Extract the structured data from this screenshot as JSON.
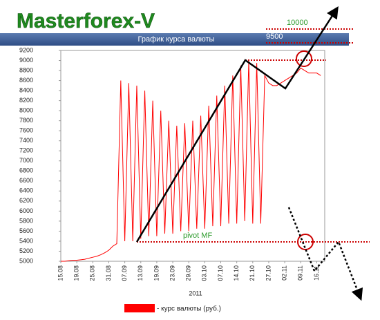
{
  "chart_data": {
    "type": "line",
    "title": "Masterforex-V",
    "subtitle": "График курса валюты",
    "x_label": "2011",
    "x": [
      0,
      1,
      2,
      3,
      4,
      5,
      6,
      7,
      8,
      9,
      10,
      11,
      12,
      13,
      14,
      15,
      16,
      17,
      18,
      19,
      20,
      21,
      22,
      23,
      24,
      25,
      26,
      27,
      28,
      29,
      30,
      31,
      32,
      33,
      34,
      35,
      36,
      37,
      38,
      39,
      40,
      41,
      42,
      43,
      44,
      45,
      46,
      47,
      48,
      49,
      50,
      51,
      52,
      53,
      54,
      55,
      56,
      57,
      58,
      59,
      60,
      61,
      62,
      63,
      64,
      65
    ],
    "series": [
      {
        "name": "- курс валюты (руб.)",
        "color": "#ff0000",
        "values": [
          5000,
          5000,
          5010,
          5020,
          5020,
          5030,
          5040,
          5060,
          5080,
          5100,
          5130,
          5170,
          5220,
          5300,
          5350,
          8600,
          5400,
          8550,
          5400,
          8500,
          5450,
          8400,
          5500,
          8200,
          5500,
          8000,
          5550,
          7800,
          5550,
          7700,
          5600,
          7750,
          5600,
          7800,
          5650,
          7900,
          5650,
          8100,
          5700,
          8300,
          5700,
          8500,
          5750,
          8700,
          5750,
          8900,
          5800,
          9000,
          5750,
          8950,
          5750,
          8700,
          8550,
          8500,
          8500,
          8550,
          8600,
          8650,
          8700,
          8750,
          8850,
          8800,
          8750,
          8750,
          8750,
          8700
        ]
      }
    ],
    "xlim": [
      0,
      66
    ],
    "xticks": [
      {
        "value": 0,
        "label": "15.08"
      },
      {
        "value": 4,
        "label": "19.08"
      },
      {
        "value": 8,
        "label": "25.08"
      },
      {
        "value": 12,
        "label": "31.08"
      },
      {
        "value": 16,
        "label": "07.09"
      },
      {
        "value": 20,
        "label": "13.09"
      },
      {
        "value": 24,
        "label": "19.09"
      },
      {
        "value": 28,
        "label": "23.09"
      },
      {
        "value": 32,
        "label": "29.09"
      },
      {
        "value": 36,
        "label": "03.10"
      },
      {
        "value": 40,
        "label": "07.10"
      },
      {
        "value": 44,
        "label": "14.10"
      },
      {
        "value": 48,
        "label": "21.10"
      },
      {
        "value": 52,
        "label": "27.10"
      },
      {
        "value": 56,
        "label": "02.11"
      },
      {
        "value": 60,
        "label": "09.11"
      },
      {
        "value": 64,
        "label": "16.11"
      }
    ],
    "ylim": [
      5000,
      9200
    ],
    "yticks": [
      5000,
      5200,
      5400,
      5600,
      5800,
      6000,
      6200,
      6400,
      6600,
      6800,
      7000,
      7200,
      7400,
      7600,
      7800,
      8000,
      8200,
      8400,
      8600,
      8800,
      9000,
      9200
    ],
    "annotations": [
      "10000",
      "9500",
      "pivot MF"
    ],
    "grid": false
  }
}
